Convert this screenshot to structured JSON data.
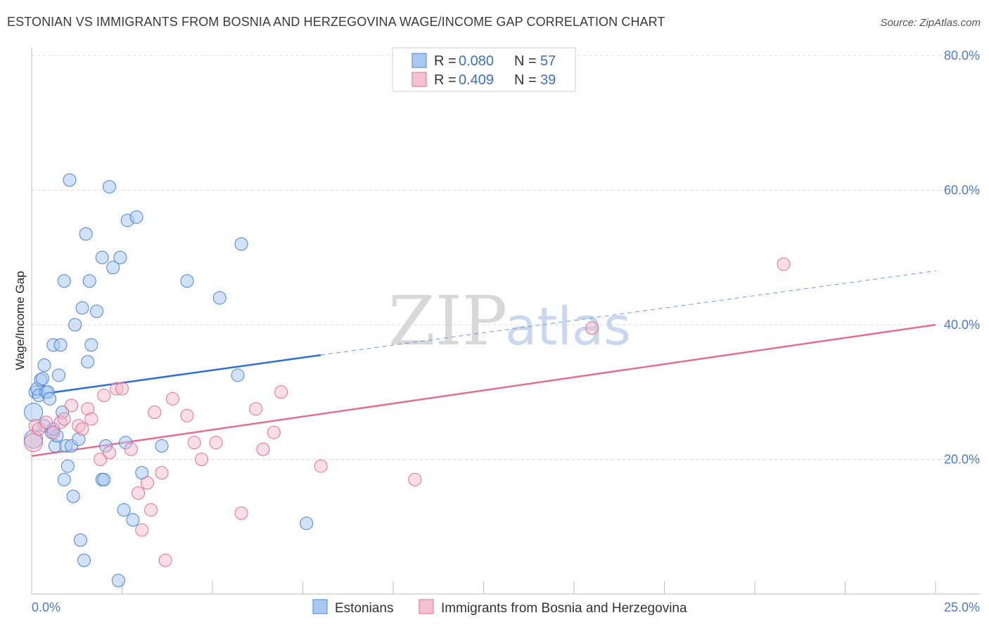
{
  "title": "ESTONIAN VS IMMIGRANTS FROM BOSNIA AND HERZEGOVINA WAGE/INCOME GAP CORRELATION CHART",
  "source": "Source: ZipAtlas.com",
  "watermark": {
    "zip": "ZIP",
    "atlas": "atlas"
  },
  "colors": {
    "blue": "#4a84d6",
    "blue_fill": "#a9c8f2",
    "pink": "#e0708f",
    "pink_fill": "#f5b5c8",
    "grid": "#d8d8d8"
  },
  "legend": {
    "rows": [
      {
        "r_label": "R = ",
        "r_value": "0.080",
        "n_label": "N = ",
        "n_value": "57"
      },
      {
        "r_label": "R = ",
        "r_value": "0.409",
        "n_label": "N = ",
        "n_value": "39"
      }
    ]
  },
  "bottom_legend": {
    "series1": "Estonians",
    "series2": "Immigrants from Bosnia and Herzegovina"
  },
  "chart_data": {
    "type": "scatter",
    "title": "ESTONIAN VS IMMIGRANTS FROM BOSNIA AND HERZEGOVINA WAGE/INCOME GAP CORRELATION CHART",
    "xlabel": "",
    "ylabel": "Wage/Income Gap",
    "xlim": [
      0,
      25
    ],
    "ylim": [
      0,
      80
    ],
    "x_tick_labels": [
      "0.0%",
      "25.0%"
    ],
    "y_ticks": [
      20,
      40,
      60,
      80
    ],
    "y_tick_labels": [
      "20.0%",
      "40.0%",
      "60.0%",
      "80.0%"
    ],
    "series": [
      {
        "name": "Estonians",
        "r": 0.08,
        "n": 57,
        "trend": {
          "x0": 0,
          "y0": 29.5,
          "x1": 8.0,
          "y1": 35.5,
          "dash_x1": 25.0,
          "dash_y1": 48.0
        },
        "points": [
          [
            0.05,
            23.0
          ],
          [
            0.05,
            27.0
          ],
          [
            0.1,
            30.0
          ],
          [
            0.15,
            30.5
          ],
          [
            0.2,
            29.5
          ],
          [
            0.25,
            31.8
          ],
          [
            0.3,
            32.0
          ],
          [
            0.35,
            25.0
          ],
          [
            0.35,
            34.0
          ],
          [
            0.4,
            30.0
          ],
          [
            0.45,
            30.0
          ],
          [
            0.5,
            29.0
          ],
          [
            0.55,
            24.0
          ],
          [
            0.6,
            37.0
          ],
          [
            0.65,
            22.0
          ],
          [
            0.7,
            23.5
          ],
          [
            0.75,
            32.5
          ],
          [
            0.8,
            37.0
          ],
          [
            0.85,
            27.0
          ],
          [
            0.9,
            17.0
          ],
          [
            0.9,
            46.5
          ],
          [
            0.95,
            22.0
          ],
          [
            1.0,
            19.0
          ],
          [
            1.05,
            61.5
          ],
          [
            1.1,
            22.0
          ],
          [
            1.15,
            14.5
          ],
          [
            1.2,
            40.0
          ],
          [
            1.3,
            23.0
          ],
          [
            1.35,
            8.0
          ],
          [
            1.4,
            42.5
          ],
          [
            1.45,
            5.0
          ],
          [
            1.5,
            53.5
          ],
          [
            1.55,
            34.5
          ],
          [
            1.6,
            46.5
          ],
          [
            1.65,
            37.0
          ],
          [
            1.8,
            42.0
          ],
          [
            1.95,
            50.0
          ],
          [
            1.95,
            17.0
          ],
          [
            2.0,
            17.0
          ],
          [
            2.05,
            22.0
          ],
          [
            2.15,
            60.5
          ],
          [
            2.25,
            48.5
          ],
          [
            2.4,
            2.0
          ],
          [
            2.45,
            50.0
          ],
          [
            2.55,
            12.5
          ],
          [
            2.6,
            22.5
          ],
          [
            2.65,
            55.5
          ],
          [
            2.8,
            11.0
          ],
          [
            2.9,
            56.0
          ],
          [
            3.05,
            18.0
          ],
          [
            3.6,
            22.0
          ],
          [
            4.3,
            46.5
          ],
          [
            5.2,
            44.0
          ],
          [
            5.7,
            32.5
          ],
          [
            5.8,
            52.0
          ],
          [
            7.6,
            10.5
          ],
          [
            0.6,
            24.5
          ]
        ]
      },
      {
        "name": "Immigrants from Bosnia and Herzegovina",
        "r": 0.409,
        "n": 39,
        "trend": {
          "x0": 0,
          "y0": 20.5,
          "x1": 25.0,
          "y1": 40.0
        },
        "points": [
          [
            0.05,
            22.5
          ],
          [
            0.1,
            25.0
          ],
          [
            0.2,
            24.5
          ],
          [
            0.4,
            25.5
          ],
          [
            0.6,
            24.0
          ],
          [
            0.8,
            25.5
          ],
          [
            0.9,
            26.0
          ],
          [
            1.1,
            28.0
          ],
          [
            1.3,
            25.0
          ],
          [
            1.4,
            24.5
          ],
          [
            1.55,
            27.5
          ],
          [
            1.65,
            26.0
          ],
          [
            1.9,
            20.0
          ],
          [
            2.0,
            29.5
          ],
          [
            2.15,
            21.0
          ],
          [
            2.35,
            30.5
          ],
          [
            2.5,
            30.5
          ],
          [
            2.75,
            21.5
          ],
          [
            2.95,
            15.0
          ],
          [
            3.05,
            9.5
          ],
          [
            3.2,
            16.5
          ],
          [
            3.3,
            12.5
          ],
          [
            3.4,
            27.0
          ],
          [
            3.6,
            18.0
          ],
          [
            3.7,
            5.0
          ],
          [
            3.9,
            29.0
          ],
          [
            4.3,
            26.5
          ],
          [
            4.5,
            22.5
          ],
          [
            4.7,
            20.0
          ],
          [
            5.1,
            22.5
          ],
          [
            5.8,
            12.0
          ],
          [
            6.2,
            27.5
          ],
          [
            6.4,
            21.5
          ],
          [
            6.7,
            24.0
          ],
          [
            6.9,
            30.0
          ],
          [
            8.0,
            19.0
          ],
          [
            10.6,
            17.0
          ],
          [
            15.5,
            39.5
          ],
          [
            20.8,
            49.0
          ]
        ]
      }
    ]
  }
}
